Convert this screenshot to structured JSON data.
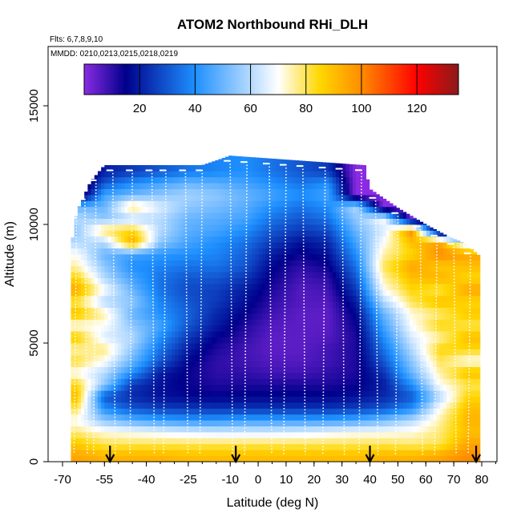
{
  "chart_data": {
    "type": "heatmap",
    "title": "ATOM2 Northbound RHi_DLH",
    "flights_note": "Flts: 6,7,8,9,10",
    "dates_note": "MMDD: 0210,0213,0215,0218,0219",
    "xlabel": "Latitude (deg N)",
    "ylabel": "Altitude (m)",
    "xlim": [
      -70,
      85
    ],
    "ylim": [
      0,
      17500
    ],
    "x_ticks": [
      -70,
      -55,
      -40,
      -25,
      -10,
      0,
      10,
      20,
      30,
      40,
      50,
      60,
      70,
      80
    ],
    "x_tick_labels": [
      "-70",
      "-55",
      "-40",
      "-25",
      "-10",
      "0",
      "10",
      "20",
      "30",
      "40",
      "50",
      "60",
      "70",
      "80"
    ],
    "y_ticks": [
      0,
      5000,
      10000,
      15000
    ],
    "y_tick_labels": [
      "0",
      "5000",
      "10000",
      "15000"
    ],
    "colorbar": {
      "min": 0,
      "max": 135,
      "ticks": [
        20,
        40,
        60,
        80,
        100,
        120
      ],
      "tick_labels": [
        "20",
        "40",
        "60",
        "80",
        "100",
        "120"
      ],
      "colors": [
        "#8a2be2",
        "#00008b",
        "#1e90ff",
        "#ffffff",
        "#ffd700",
        "#ff8c00",
        "#ff0000",
        "#8b1a1a"
      ],
      "stops": [
        0,
        15,
        40,
        70,
        85,
        100,
        120,
        135
      ]
    },
    "arrows_latitude": [
      -53,
      -8,
      40,
      78
    ],
    "coverage": {
      "lat_min": -67,
      "lat_max": 80,
      "alt_min": 0,
      "alt_top_by_lat": [
        [
          -67,
          9000
        ],
        [
          -65,
          10500
        ],
        [
          -60,
          11800
        ],
        [
          -55,
          12500
        ],
        [
          -20,
          12500
        ],
        [
          -10,
          12900
        ],
        [
          38,
          12500
        ],
        [
          40,
          11500
        ],
        [
          50,
          10700
        ],
        [
          60,
          10000
        ],
        [
          68,
          9500
        ],
        [
          74,
          9200
        ],
        [
          80,
          8600
        ]
      ]
    },
    "profile_latitudes": [
      -65,
      -62,
      -58,
      -52,
      -45,
      -38,
      -33,
      -26,
      -20,
      -10,
      -4,
      4,
      10,
      16,
      24,
      30,
      37,
      42,
      50,
      58,
      64,
      70,
      76
    ],
    "rhi_field": {
      "lat_centers": [
        -65,
        -55,
        -45,
        -35,
        -25,
        -15,
        -5,
        5,
        15,
        25,
        35,
        45,
        55,
        65,
        75
      ],
      "alt_centers": [
        250,
        750,
        1250,
        1750,
        2250,
        2750,
        3250,
        3750,
        4250,
        4750,
        5250,
        5750,
        6250,
        6750,
        7250,
        7750,
        8250,
        8750,
        9250,
        9750,
        10250,
        10750,
        11250,
        11750,
        12250
      ],
      "values": [
        [
          95,
          92,
          92,
          92,
          90,
          90,
          90,
          90,
          90,
          90,
          90,
          92,
          92,
          95,
          100
        ],
        [
          88,
          80,
          80,
          80,
          80,
          80,
          80,
          80,
          80,
          80,
          80,
          80,
          78,
          80,
          95
        ],
        [
          78,
          72,
          70,
          68,
          66,
          65,
          65,
          65,
          66,
          68,
          70,
          70,
          72,
          78,
          90
        ],
        [
          70,
          55,
          48,
          44,
          42,
          42,
          44,
          44,
          44,
          44,
          46,
          52,
          60,
          75,
          92
        ],
        [
          80,
          40,
          30,
          26,
          25,
          24,
          24,
          24,
          24,
          24,
          26,
          30,
          40,
          70,
          90
        ],
        [
          90,
          30,
          22,
          18,
          16,
          15,
          16,
          16,
          16,
          16,
          18,
          22,
          30,
          60,
          85
        ],
        [
          85,
          55,
          25,
          18,
          14,
          12,
          12,
          12,
          12,
          12,
          14,
          20,
          40,
          70,
          80
        ],
        [
          70,
          60,
          40,
          20,
          14,
          10,
          10,
          8,
          8,
          10,
          12,
          24,
          50,
          75,
          90
        ],
        [
          82,
          70,
          50,
          30,
          16,
          10,
          8,
          6,
          6,
          8,
          12,
          30,
          55,
          80,
          70
        ],
        [
          75,
          78,
          55,
          35,
          20,
          12,
          8,
          5,
          5,
          8,
          12,
          35,
          60,
          85,
          85
        ],
        [
          88,
          65,
          60,
          40,
          25,
          15,
          10,
          5,
          5,
          6,
          12,
          40,
          65,
          75,
          90
        ],
        [
          70,
          70,
          55,
          45,
          30,
          20,
          12,
          6,
          5,
          5,
          14,
          45,
          70,
          85,
          80
        ],
        [
          90,
          75,
          50,
          40,
          32,
          22,
          15,
          8,
          5,
          5,
          16,
          50,
          72,
          78,
          88
        ],
        [
          80,
          60,
          55,
          38,
          30,
          25,
          18,
          10,
          6,
          6,
          20,
          60,
          80,
          90,
          85
        ],
        [
          95,
          70,
          50,
          35,
          28,
          26,
          20,
          12,
          6,
          8,
          25,
          70,
          85,
          80,
          95
        ],
        [
          85,
          60,
          45,
          35,
          30,
          30,
          25,
          14,
          8,
          10,
          30,
          75,
          90,
          92,
          85
        ],
        [
          75,
          55,
          40,
          38,
          35,
          35,
          30,
          16,
          10,
          14,
          35,
          80,
          95,
          88,
          90
        ],
        [
          70,
          50,
          45,
          42,
          40,
          38,
          32,
          20,
          14,
          18,
          40,
          75,
          85,
          100,
          95
        ],
        [
          60,
          60,
          95,
          55,
          45,
          40,
          35,
          25,
          18,
          22,
          45,
          70,
          90,
          95,
          60
        ],
        [
          55,
          80,
          85,
          60,
          48,
          45,
          40,
          30,
          25,
          28,
          50,
          65,
          100,
          0,
          0
        ],
        [
          60,
          55,
          60,
          60,
          50,
          48,
          45,
          35,
          30,
          35,
          55,
          70,
          0,
          0,
          0
        ],
        [
          50,
          50,
          80,
          65,
          55,
          52,
          48,
          40,
          35,
          40,
          60,
          0,
          0,
          0,
          0
        ],
        [
          0,
          45,
          50,
          55,
          58,
          55,
          50,
          45,
          40,
          45,
          0,
          0,
          0,
          0,
          0
        ],
        [
          0,
          30,
          40,
          45,
          50,
          48,
          45,
          40,
          35,
          40,
          0,
          0,
          0,
          0,
          0
        ],
        [
          0,
          20,
          25,
          30,
          35,
          38,
          40,
          35,
          30,
          25,
          0,
          0,
          0,
          0,
          0
        ]
      ]
    }
  }
}
